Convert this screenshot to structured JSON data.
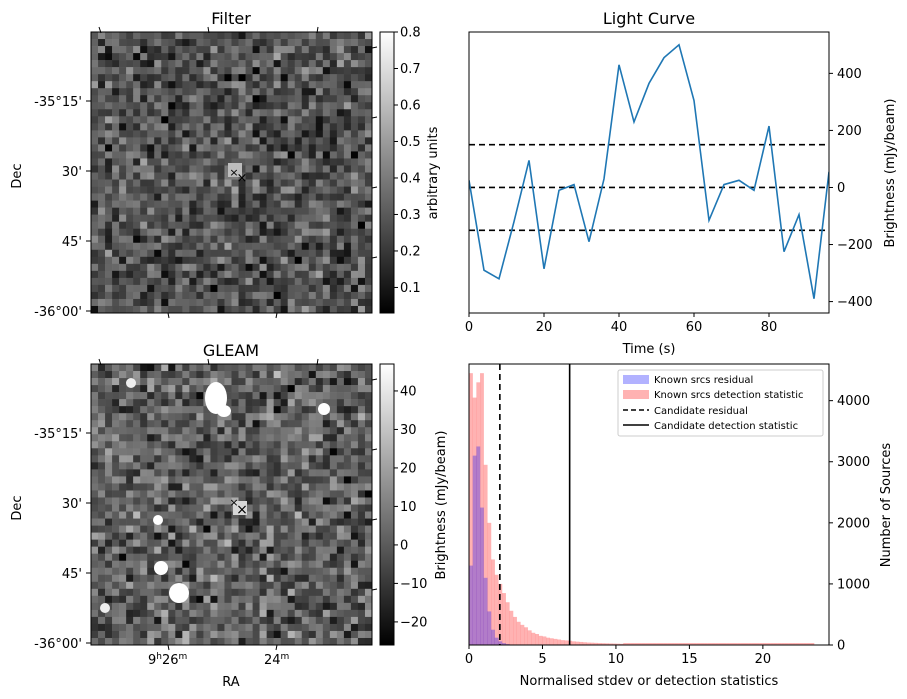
{
  "panels": {
    "filter": {
      "title": "Filter",
      "ylabel": "Dec",
      "dec_ticks": [
        "-35°15'",
        "30'",
        "45'",
        "-36°00'"
      ],
      "colorbar": {
        "label": "arbitrary units",
        "ticks": [
          "0.8",
          "0.7",
          "0.6",
          "0.5",
          "0.4",
          "0.3",
          "0.2",
          "0.1"
        ],
        "range": [
          0.03,
          0.8
        ]
      }
    },
    "gleam": {
      "title": "GLEAM",
      "ylabel": "Dec",
      "xlabel": "RA",
      "ra_tick_main": "9",
      "ra_tick_h": "h",
      "ra_tick_min": "26",
      "ra_tick_m": "m",
      "ra_tick2_min": "24",
      "ra_tick2_m": "m",
      "dec_ticks": [
        "-35°15'",
        "30'",
        "45'",
        "-36°00'"
      ],
      "colorbar": {
        "label": "Brightness (mJy/beam)",
        "ticks": [
          "40",
          "30",
          "20",
          "10",
          "0",
          "−10",
          "−20"
        ],
        "range": [
          -26,
          47
        ]
      }
    }
  },
  "chart_data": [
    {
      "type": "line",
      "title": "Light Curve",
      "xlabel": "Time (s)",
      "ylabel": "Brightness (mJy/beam)",
      "xlim": [
        0,
        96
      ],
      "ylim": [
        -440,
        545
      ],
      "x_ticks": [
        0,
        20,
        40,
        60,
        80
      ],
      "y_ticks": [
        -400,
        -200,
        0,
        200,
        400
      ],
      "x_tick_labels": [
        "0",
        "20",
        "40",
        "60",
        "80"
      ],
      "y_tick_labels": [
        "−400",
        "−200",
        "0",
        "200",
        "400"
      ],
      "series": [
        {
          "name": "light curve",
          "color": "#1f77b4",
          "x": [
            0,
            4,
            8,
            12,
            16,
            20,
            24,
            28,
            32,
            36,
            40,
            44,
            48,
            52,
            56,
            60,
            64,
            68,
            72,
            76,
            80,
            84,
            88,
            92,
            96
          ],
          "y": [
            25,
            -290,
            -320,
            -120,
            95,
            -285,
            -10,
            10,
            -190,
            30,
            430,
            230,
            365,
            455,
            500,
            305,
            -115,
            10,
            25,
            -10,
            215,
            -225,
            -95,
            -390,
            55
          ]
        }
      ],
      "hlines": [
        {
          "y": 150,
          "style": "dashed"
        },
        {
          "y": 0,
          "style": "dashed"
        },
        {
          "y": -150,
          "style": "dashed"
        }
      ]
    },
    {
      "type": "bar",
      "subtype": "histogram",
      "xlabel": "Normalised stdev or detection statistics",
      "ylabel": "Number of Sources",
      "xlim": [
        0,
        24.5
      ],
      "ylim": [
        0,
        4600
      ],
      "x_ticks": [
        0,
        5,
        10,
        15,
        20
      ],
      "y_ticks": [
        0,
        1000,
        2000,
        3000,
        4000
      ],
      "x_tick_labels": [
        "0",
        "5",
        "10",
        "15",
        "20"
      ],
      "y_tick_labels": [
        "0",
        "1000",
        "2000",
        "3000",
        "4000"
      ],
      "bin_width": 0.25,
      "series": [
        {
          "name": "Known srcs residual",
          "color": "#0000ff",
          "alpha": 0.3,
          "values": [
            1300,
            3100,
            3250,
            2250,
            1100,
            550,
            250,
            120,
            60,
            30,
            15,
            8,
            5,
            3,
            2
          ]
        },
        {
          "name": "Known srcs detection statistic",
          "color": "#ff0000",
          "alpha": 0.3,
          "values": [
            4450,
            4050,
            4300,
            4450,
            2950,
            2000,
            1400,
            1150,
            1000,
            850,
            700,
            560,
            460,
            380,
            330,
            290,
            240,
            200,
            180,
            150,
            140,
            120,
            110,
            100,
            90,
            80,
            75,
            70,
            60,
            55,
            50,
            45,
            40,
            38,
            35,
            32,
            30,
            28,
            26,
            24,
            22,
            20
          ]
        }
      ],
      "vlines": [
        {
          "name": "Candidate residual",
          "x": 2.1,
          "style": "dashed"
        },
        {
          "name": "Candidate detection statistic",
          "x": 6.85,
          "style": "solid"
        }
      ]
    }
  ]
}
